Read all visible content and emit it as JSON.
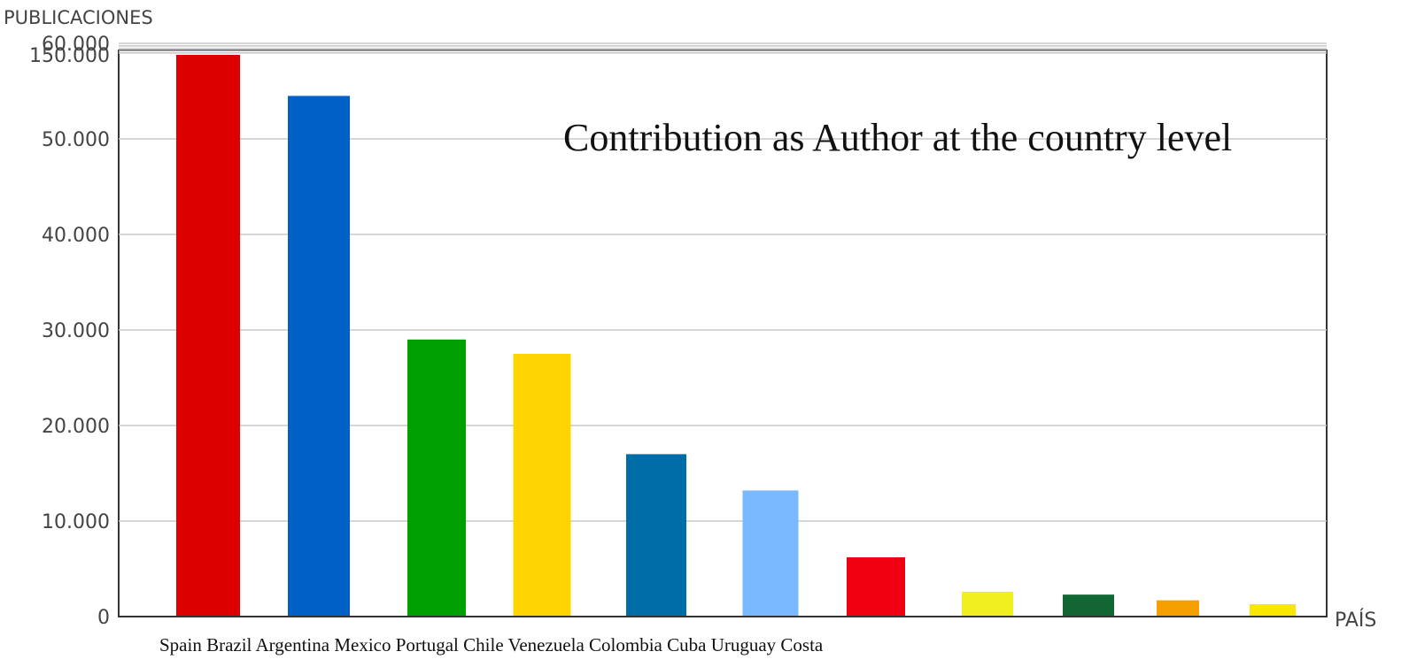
{
  "chart_data": {
    "type": "bar",
    "title": "Contribution as Author at the country level",
    "ylabel": "PUBLICACIONES",
    "xlabel": "PAÍS",
    "category_line": "Spain Brazil Argentina Mexico Portugal Chile Venezuela Colombia Cuba Uruguay Costa",
    "categories": [
      "Spain",
      "Brazil",
      "Argentina",
      "Mexico",
      "Portugal",
      "Chile",
      "Venezuela",
      "Colombia",
      "Cuba",
      "Uruguay",
      "Costa"
    ],
    "values": [
      150000,
      54500,
      29000,
      27500,
      17000,
      13200,
      6200,
      2600,
      2300,
      1700,
      1300
    ],
    "colors": [
      "#dd0000",
      "#0060c8",
      "#00a000",
      "#ffd400",
      "#006ca8",
      "#7ab8ff",
      "#f00010",
      "#f0f020",
      "#116633",
      "#f5a000",
      "#f8e800"
    ],
    "y_ticks": [
      {
        "value": 0,
        "label": "0"
      },
      {
        "value": 10000,
        "label": "10.000"
      },
      {
        "value": 20000,
        "label": "20.000"
      },
      {
        "value": 30000,
        "label": "30.000"
      },
      {
        "value": 40000,
        "label": "40.000"
      },
      {
        "value": 50000,
        "label": "50.000"
      },
      {
        "value": 60000,
        "label": "60.000"
      },
      {
        "value": 150000,
        "label": "150.000"
      }
    ],
    "axis_break": {
      "from": 60000,
      "to": 150000
    },
    "ylim": [
      0,
      150000
    ],
    "grid": true,
    "legend": "none"
  }
}
